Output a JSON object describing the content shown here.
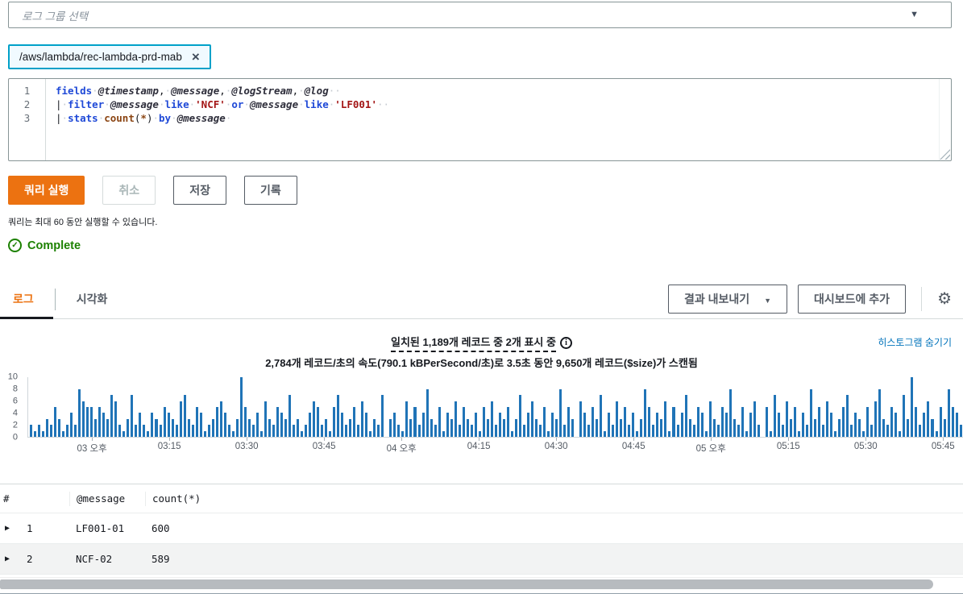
{
  "log_group": {
    "placeholder": "로그 그룹 선택",
    "chip_label": "/aws/lambda/rec-lambda-prd-mab"
  },
  "query_editor": {
    "lines": [
      {
        "num": "1",
        "tokens": [
          [
            "kw",
            "fields"
          ],
          [
            "ws",
            "·"
          ],
          [
            "fld",
            "@timestamp"
          ],
          [
            "pl",
            ","
          ],
          [
            "ws",
            "·"
          ],
          [
            "fld",
            "@message"
          ],
          [
            "pl",
            ","
          ],
          [
            "ws",
            "·"
          ],
          [
            "fld",
            "@logStream"
          ],
          [
            "pl",
            ","
          ],
          [
            "ws",
            "·"
          ],
          [
            "fld",
            "@log"
          ],
          [
            "ws",
            "··"
          ]
        ]
      },
      {
        "num": "2",
        "tokens": [
          [
            "pl",
            "|"
          ],
          [
            "ws",
            "·"
          ],
          [
            "kw",
            "filter"
          ],
          [
            "ws",
            "·"
          ],
          [
            "fld",
            "@message"
          ],
          [
            "ws",
            "·"
          ],
          [
            "kw",
            "like"
          ],
          [
            "ws",
            "·"
          ],
          [
            "str",
            "'NCF'"
          ],
          [
            "ws",
            "·"
          ],
          [
            "kw",
            "or"
          ],
          [
            "ws",
            "·"
          ],
          [
            "fld",
            "@message"
          ],
          [
            "ws",
            "·"
          ],
          [
            "kw",
            "like"
          ],
          [
            "ws",
            "·"
          ],
          [
            "str",
            "'LF001'"
          ],
          [
            "ws",
            "··"
          ]
        ]
      },
      {
        "num": "3",
        "tokens": [
          [
            "pl",
            "|"
          ],
          [
            "ws",
            "·"
          ],
          [
            "kw",
            "stats"
          ],
          [
            "ws",
            "·"
          ],
          [
            "fn",
            "count"
          ],
          [
            "pl",
            "("
          ],
          [
            "fn",
            "*"
          ],
          [
            "pl",
            ")"
          ],
          [
            "ws",
            "·"
          ],
          [
            "kw",
            "by"
          ],
          [
            "ws",
            "·"
          ],
          [
            "fld",
            "@message"
          ],
          [
            "ws",
            "·"
          ]
        ]
      }
    ]
  },
  "toolbar": {
    "run": "쿼리 실행",
    "cancel": "취소",
    "save": "저장",
    "history": "기록",
    "note": "쿼리는 최대 60 동안 실행할 수 있습니다."
  },
  "status": {
    "label": "Complete"
  },
  "results": {
    "tab_logs": "로그",
    "tab_viz": "시각화",
    "export_label": "결과 내보내기",
    "add_dashboard_label": "대시보드에 추가"
  },
  "histogram": {
    "line1": "일치된 1,189개 레코드 중 2개 표시 중",
    "line2": "2,784개 레코드/초의 속도(790.1 kBPerSecond/초)로 3.5초 동안 9,650개 레코드($size)가 스캔됨",
    "hide_link": "히스토그램 숨기기"
  },
  "chart_data": {
    "type": "bar",
    "title": "",
    "xlabel": "",
    "ylabel": "",
    "ylim": [
      0,
      10
    ],
    "y_ticks": [
      0,
      2,
      4,
      6,
      8,
      10
    ],
    "x_ticks": [
      "03 오후",
      "03:15",
      "03:30",
      "03:45",
      "04 오후",
      "04:15",
      "04:30",
      "04:45",
      "05 오후",
      "05:15",
      "05:30",
      "05:45"
    ],
    "bar_color": "#2074b7",
    "grid": false,
    "legend": "none",
    "values": [
      2,
      1,
      2,
      1,
      3,
      2,
      5,
      3,
      1,
      2,
      4,
      2,
      8,
      6,
      5,
      5,
      3,
      5,
      4,
      3,
      7,
      6,
      2,
      1,
      3,
      7,
      2,
      4,
      2,
      1,
      4,
      3,
      2,
      5,
      4,
      3,
      2,
      6,
      7,
      3,
      2,
      5,
      4,
      1,
      2,
      3,
      5,
      6,
      4,
      2,
      1,
      3,
      10,
      5,
      3,
      2,
      4,
      1,
      6,
      3,
      2,
      5,
      4,
      3,
      7,
      2,
      3,
      1,
      2,
      4,
      6,
      5,
      2,
      3,
      1,
      5,
      7,
      4,
      2,
      3,
      5,
      2,
      6,
      4,
      1,
      3,
      2,
      7,
      0,
      3,
      4,
      2,
      1,
      6,
      3,
      5,
      2,
      4,
      8,
      3,
      2,
      5,
      1,
      4,
      3,
      6,
      2,
      5,
      3,
      2,
      4,
      1,
      5,
      3,
      6,
      2,
      4,
      3,
      5,
      1,
      3,
      7,
      2,
      4,
      6,
      3,
      2,
      5,
      1,
      4,
      3,
      8,
      2,
      5,
      3,
      0,
      6,
      4,
      2,
      5,
      3,
      7,
      1,
      4,
      2,
      6,
      3,
      5,
      2,
      4,
      1,
      3,
      8,
      5,
      2,
      4,
      3,
      6,
      1,
      5,
      2,
      4,
      7,
      3,
      2,
      5,
      4,
      1,
      6,
      3,
      2,
      5,
      4,
      8,
      3,
      2,
      5,
      1,
      4,
      6,
      2,
      0,
      5,
      1,
      7,
      4,
      2,
      6,
      3,
      5,
      1,
      4,
      2,
      8,
      3,
      5,
      2,
      6,
      4,
      1,
      3,
      5,
      7,
      2,
      4,
      3,
      1,
      5,
      2,
      6,
      8,
      3,
      2,
      5,
      4,
      1,
      7,
      3,
      10,
      5,
      2,
      4,
      6,
      3,
      1,
      5,
      3,
      8,
      5,
      4,
      2
    ]
  },
  "results_table": {
    "headers": [
      "#",
      "@message",
      "count(*)"
    ],
    "rows": [
      [
        "1",
        "LF001-01",
        "600"
      ],
      [
        "2",
        "NCF-02",
        "589"
      ]
    ]
  },
  "icons": {
    "dropdown_arrow": "▼",
    "remove": "×",
    "gear": "⚙",
    "check": "✓",
    "info": "i",
    "expander": "▶"
  },
  "colors": {
    "accent_orange": "#ec7211",
    "link_blue": "#0073bb",
    "success_green": "#1d8102",
    "bar_blue": "#2074b7",
    "chip_border": "#00a1c9"
  }
}
